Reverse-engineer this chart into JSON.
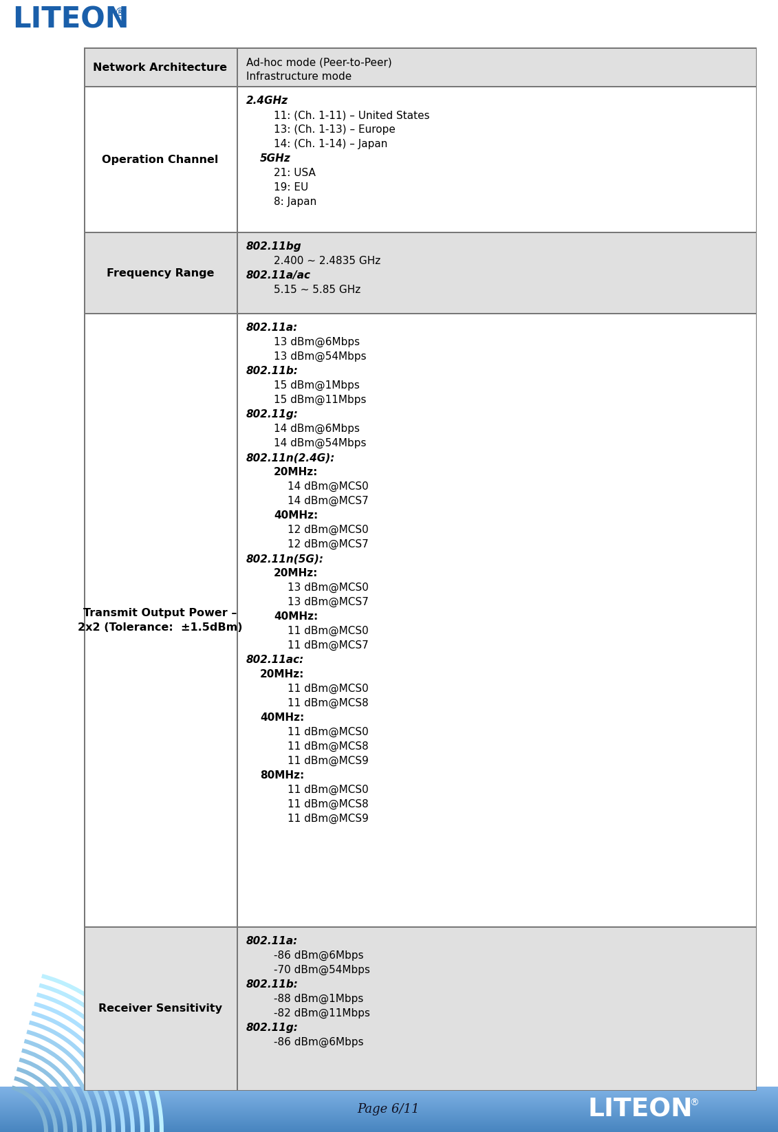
{
  "page_label": "Page 6/11",
  "rows": [
    {
      "label": "Network Architecture",
      "bg": "#e0e0e0",
      "content": [
        {
          "text": "Ad-hoc mode (Peer-to-Peer)",
          "bold": false,
          "italic": false,
          "indent": 0
        },
        {
          "text": "Infrastructure mode",
          "bold": false,
          "italic": false,
          "indent": 0
        }
      ]
    },
    {
      "label": "Operation Channel",
      "bg": "#ffffff",
      "content": [
        {
          "text": "2.4GHz",
          "bold": true,
          "italic": true,
          "indent": 0
        },
        {
          "text": "11: (Ch. 1-11) – United States",
          "bold": false,
          "italic": false,
          "indent": 2
        },
        {
          "text": "13: (Ch. 1-13) – Europe",
          "bold": false,
          "italic": false,
          "indent": 2
        },
        {
          "text": "14: (Ch. 1-14) – Japan",
          "bold": false,
          "italic": false,
          "indent": 2
        },
        {
          "text": "5GHz",
          "bold": true,
          "italic": true,
          "indent": 1
        },
        {
          "text": "21: USA",
          "bold": false,
          "italic": false,
          "indent": 2
        },
        {
          "text": "19: EU",
          "bold": false,
          "italic": false,
          "indent": 2
        },
        {
          "text": "8: Japan",
          "bold": false,
          "italic": false,
          "indent": 2
        }
      ]
    },
    {
      "label": "Frequency Range",
      "bg": "#e0e0e0",
      "content": [
        {
          "text": "802.11bg",
          "bold": true,
          "italic": true,
          "indent": 0
        },
        {
          "text": "2.400 ~ 2.4835 GHz",
          "bold": false,
          "italic": false,
          "indent": 2
        },
        {
          "text": "802.11a/ac",
          "bold": true,
          "italic": true,
          "indent": 0
        },
        {
          "text": "5.15 ~ 5.85 GHz",
          "bold": false,
          "italic": false,
          "indent": 2
        }
      ]
    },
    {
      "label": "Transmit Output Power –\n2x2 (Tolerance:  ±1.5dBm)",
      "bg": "#ffffff",
      "content": [
        {
          "text": "802.11a:",
          "bold": true,
          "italic": true,
          "indent": 0
        },
        {
          "text": "13 dBm@6Mbps",
          "bold": false,
          "italic": false,
          "indent": 2
        },
        {
          "text": "13 dBm@54Mbps",
          "bold": false,
          "italic": false,
          "indent": 2
        },
        {
          "text": "802.11b:",
          "bold": true,
          "italic": true,
          "indent": 0
        },
        {
          "text": "15 dBm@1Mbps",
          "bold": false,
          "italic": false,
          "indent": 2
        },
        {
          "text": "15 dBm@11Mbps",
          "bold": false,
          "italic": false,
          "indent": 2
        },
        {
          "text": "802.11g:",
          "bold": true,
          "italic": true,
          "indent": 0
        },
        {
          "text": "14 dBm@6Mbps",
          "bold": false,
          "italic": false,
          "indent": 2
        },
        {
          "text": "14 dBm@54Mbps",
          "bold": false,
          "italic": false,
          "indent": 2
        },
        {
          "text": "802.11n(2.4G):",
          "bold": true,
          "italic": true,
          "indent": 0
        },
        {
          "text": "20MHz:",
          "bold": true,
          "italic": false,
          "indent": 2
        },
        {
          "text": "14 dBm@MCS0",
          "bold": false,
          "italic": false,
          "indent": 3
        },
        {
          "text": "14 dBm@MCS7",
          "bold": false,
          "italic": false,
          "indent": 3
        },
        {
          "text": "40MHz:",
          "bold": true,
          "italic": false,
          "indent": 2
        },
        {
          "text": "12 dBm@MCS0",
          "bold": false,
          "italic": false,
          "indent": 3
        },
        {
          "text": "12 dBm@MCS7",
          "bold": false,
          "italic": false,
          "indent": 3
        },
        {
          "text": "802.11n(5G):",
          "bold": true,
          "italic": true,
          "indent": 0
        },
        {
          "text": "20MHz:",
          "bold": true,
          "italic": false,
          "indent": 2
        },
        {
          "text": "13 dBm@MCS0",
          "bold": false,
          "italic": false,
          "indent": 3
        },
        {
          "text": "13 dBm@MCS7",
          "bold": false,
          "italic": false,
          "indent": 3
        },
        {
          "text": "40MHz:",
          "bold": true,
          "italic": false,
          "indent": 2
        },
        {
          "text": "11 dBm@MCS0",
          "bold": false,
          "italic": false,
          "indent": 3
        },
        {
          "text": "11 dBm@MCS7",
          "bold": false,
          "italic": false,
          "indent": 3
        },
        {
          "text": "802.11ac:",
          "bold": true,
          "italic": true,
          "indent": 0
        },
        {
          "text": "20MHz:",
          "bold": true,
          "italic": false,
          "indent": 1
        },
        {
          "text": "11 dBm@MCS0",
          "bold": false,
          "italic": false,
          "indent": 3
        },
        {
          "text": "11 dBm@MCS8",
          "bold": false,
          "italic": false,
          "indent": 3
        },
        {
          "text": "40MHz:",
          "bold": true,
          "italic": false,
          "indent": 1
        },
        {
          "text": "11 dBm@MCS0",
          "bold": false,
          "italic": false,
          "indent": 3
        },
        {
          "text": "11 dBm@MCS8",
          "bold": false,
          "italic": false,
          "indent": 3
        },
        {
          "text": "11 dBm@MCS9",
          "bold": false,
          "italic": false,
          "indent": 3
        },
        {
          "text": "80MHz:",
          "bold": true,
          "italic": false,
          "indent": 1
        },
        {
          "text": "11 dBm@MCS0",
          "bold": false,
          "italic": false,
          "indent": 3
        },
        {
          "text": "11 dBm@MCS8",
          "bold": false,
          "italic": false,
          "indent": 3
        },
        {
          "text": "11 dBm@MCS9",
          "bold": false,
          "italic": false,
          "indent": 3
        }
      ]
    },
    {
      "label": "Receiver Sensitivity",
      "bg": "#e0e0e0",
      "content": [
        {
          "text": "802.11a:",
          "bold": true,
          "italic": true,
          "indent": 0
        },
        {
          "text": "-86 dBm@6Mbps",
          "bold": false,
          "italic": false,
          "indent": 2
        },
        {
          "text": "-70 dBm@54Mbps",
          "bold": false,
          "italic": false,
          "indent": 2
        },
        {
          "text": "802.11b:",
          "bold": true,
          "italic": true,
          "indent": 0
        },
        {
          "text": "-88 dBm@1Mbps",
          "bold": false,
          "italic": false,
          "indent": 2
        },
        {
          "text": "-82 dBm@11Mbps",
          "bold": false,
          "italic": false,
          "indent": 2
        },
        {
          "text": "802.11g:",
          "bold": true,
          "italic": true,
          "indent": 0
        },
        {
          "text": "-86 dBm@6Mbps",
          "bold": false,
          "italic": false,
          "indent": 2
        }
      ]
    }
  ]
}
